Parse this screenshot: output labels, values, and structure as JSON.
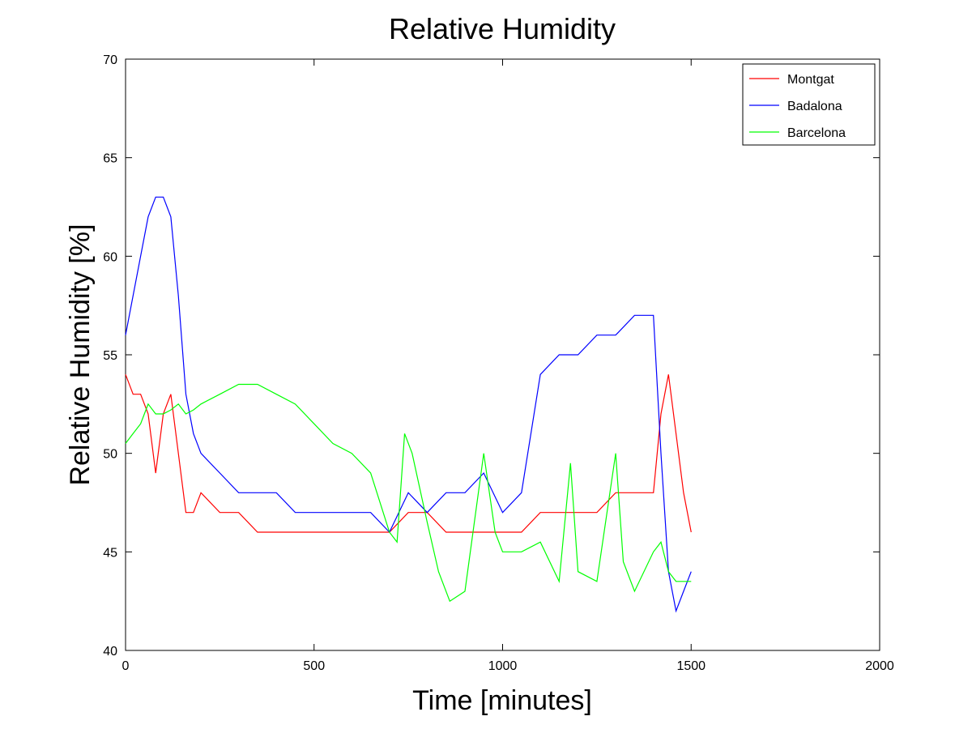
{
  "chart_data": {
    "type": "line",
    "title": "Relative Humidity",
    "xlabel": "Time [minutes]",
    "ylabel": "Relative Humidity [%]",
    "xlim": [
      0,
      2000
    ],
    "ylim": [
      40,
      70
    ],
    "xticks": [
      "0",
      "500",
      "1000",
      "1500",
      "2000"
    ],
    "yticks": [
      "40",
      "45",
      "50",
      "55",
      "60",
      "65",
      "70"
    ],
    "grid": false,
    "legend_position": "top-right",
    "series": [
      {
        "name": "Montgat",
        "color": "#ff0000",
        "x": [
          0,
          20,
          40,
          60,
          80,
          100,
          120,
          140,
          160,
          180,
          200,
          250,
          300,
          350,
          400,
          450,
          500,
          550,
          600,
          650,
          700,
          750,
          800,
          850,
          900,
          950,
          1000,
          1050,
          1100,
          1150,
          1200,
          1250,
          1300,
          1350,
          1400,
          1420,
          1440,
          1460,
          1480,
          1500
        ],
        "y": [
          54,
          53,
          53,
          52,
          49,
          52,
          53,
          50,
          47,
          47,
          48,
          47,
          47,
          46,
          46,
          46,
          46,
          46,
          46,
          46,
          46,
          47,
          47,
          46,
          46,
          46,
          46,
          46,
          47,
          47,
          47,
          47,
          48,
          48,
          48,
          52,
          54,
          51,
          48,
          46
        ]
      },
      {
        "name": "Badalona",
        "color": "#0000ff",
        "x": [
          0,
          20,
          40,
          60,
          80,
          100,
          120,
          140,
          160,
          180,
          200,
          250,
          300,
          350,
          400,
          450,
          500,
          550,
          600,
          650,
          700,
          750,
          800,
          850,
          900,
          950,
          1000,
          1050,
          1100,
          1150,
          1200,
          1250,
          1300,
          1350,
          1400,
          1420,
          1440,
          1460,
          1480,
          1500
        ],
        "y": [
          56,
          58,
          60,
          62,
          63,
          63,
          62,
          58,
          53,
          51,
          50,
          49,
          48,
          48,
          48,
          47,
          47,
          47,
          47,
          47,
          46,
          48,
          47,
          48,
          48,
          49,
          47,
          48,
          54,
          55,
          55,
          56,
          56,
          57,
          57,
          50,
          44,
          42,
          43,
          44
        ]
      },
      {
        "name": "Barcelona",
        "color": "#00ff00",
        "x": [
          0,
          20,
          40,
          60,
          80,
          100,
          120,
          140,
          160,
          180,
          200,
          250,
          300,
          350,
          400,
          450,
          500,
          550,
          600,
          650,
          700,
          720,
          740,
          760,
          800,
          830,
          860,
          900,
          950,
          980,
          1000,
          1050,
          1100,
          1150,
          1180,
          1200,
          1250,
          1300,
          1320,
          1350,
          1400,
          1420,
          1440,
          1460,
          1480,
          1500
        ],
        "y": [
          50.5,
          51,
          51.5,
          52.5,
          52,
          52,
          52.2,
          52.5,
          52,
          52.2,
          52.5,
          53,
          53.5,
          53.5,
          53,
          52.5,
          51.5,
          50.5,
          50,
          49,
          46,
          45.5,
          51,
          50,
          46.5,
          44,
          42.5,
          43,
          50,
          46,
          45,
          45,
          45.5,
          43.5,
          49.5,
          44,
          43.5,
          50,
          44.5,
          43,
          45,
          45.5,
          44,
          43.5,
          43.5,
          43.5
        ]
      }
    ]
  }
}
